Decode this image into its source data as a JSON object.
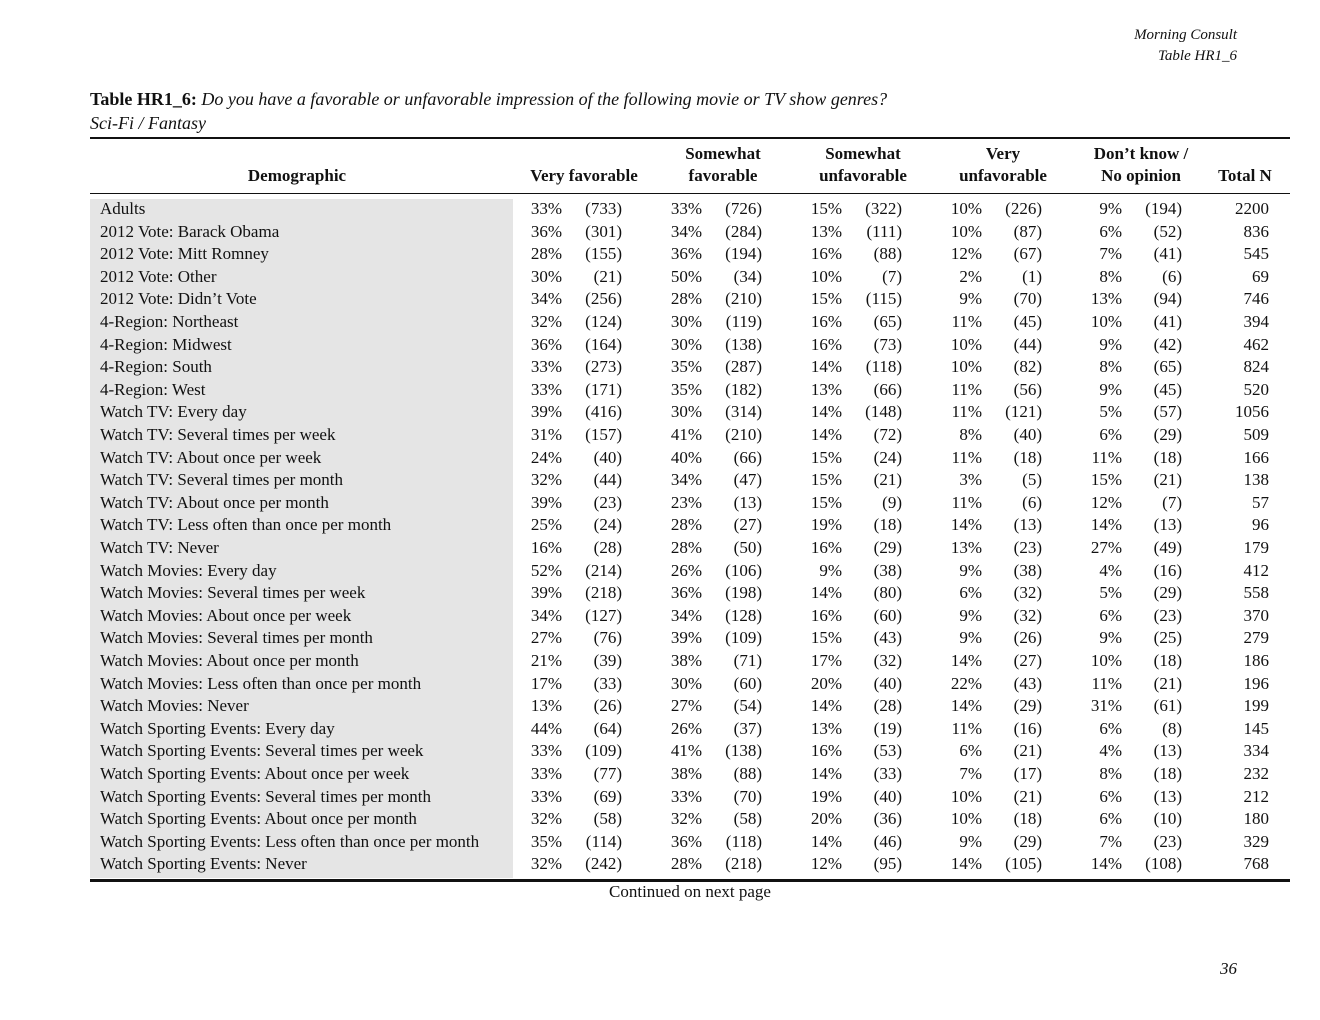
{
  "header": {
    "source": "Morning Consult",
    "table_id": "Table HR1_6"
  },
  "title": {
    "label": "Table HR1_6:",
    "question": "Do you have a favorable or unfavorable impression of the following movie or TV show genres?",
    "subtitle": "Sci-Fi / Fantasy"
  },
  "table": {
    "columns": [
      [
        "Demographic"
      ],
      [
        "Very favorable"
      ],
      [
        "Somewhat",
        "favorable"
      ],
      [
        "Somewhat",
        "unfavorable"
      ],
      [
        "Very",
        "unfavorable"
      ],
      [
        "Don’t know /",
        "No opinion"
      ],
      [
        "Total N"
      ]
    ],
    "rows": [
      {
        "label": "Adults",
        "cells": [
          "33%",
          "(733)",
          "33%",
          "(726)",
          "15%",
          "(322)",
          "10%",
          "(226)",
          "9%",
          "(194)",
          "2200"
        ]
      },
      {
        "label": "2012 Vote: Barack Obama",
        "cells": [
          "36%",
          "(301)",
          "34%",
          "(284)",
          "13%",
          "(111)",
          "10%",
          "(87)",
          "6%",
          "(52)",
          "836"
        ]
      },
      {
        "label": "2012 Vote: Mitt Romney",
        "cells": [
          "28%",
          "(155)",
          "36%",
          "(194)",
          "16%",
          "(88)",
          "12%",
          "(67)",
          "7%",
          "(41)",
          "545"
        ]
      },
      {
        "label": "2012 Vote: Other",
        "cells": [
          "30%",
          "(21)",
          "50%",
          "(34)",
          "10%",
          "(7)",
          "2%",
          "(1)",
          "8%",
          "(6)",
          "69"
        ]
      },
      {
        "label": "2012 Vote: Didn’t Vote",
        "cells": [
          "34%",
          "(256)",
          "28%",
          "(210)",
          "15%",
          "(115)",
          "9%",
          "(70)",
          "13%",
          "(94)",
          "746"
        ]
      },
      {
        "label": "4-Region: Northeast",
        "cells": [
          "32%",
          "(124)",
          "30%",
          "(119)",
          "16%",
          "(65)",
          "11%",
          "(45)",
          "10%",
          "(41)",
          "394"
        ]
      },
      {
        "label": "4-Region: Midwest",
        "cells": [
          "36%",
          "(164)",
          "30%",
          "(138)",
          "16%",
          "(73)",
          "10%",
          "(44)",
          "9%",
          "(42)",
          "462"
        ]
      },
      {
        "label": "4-Region: South",
        "cells": [
          "33%",
          "(273)",
          "35%",
          "(287)",
          "14%",
          "(118)",
          "10%",
          "(82)",
          "8%",
          "(65)",
          "824"
        ]
      },
      {
        "label": "4-Region: West",
        "cells": [
          "33%",
          "(171)",
          "35%",
          "(182)",
          "13%",
          "(66)",
          "11%",
          "(56)",
          "9%",
          "(45)",
          "520"
        ]
      },
      {
        "label": "Watch TV: Every day",
        "cells": [
          "39%",
          "(416)",
          "30%",
          "(314)",
          "14%",
          "(148)",
          "11%",
          "(121)",
          "5%",
          "(57)",
          "1056"
        ]
      },
      {
        "label": "Watch TV: Several times per week",
        "cells": [
          "31%",
          "(157)",
          "41%",
          "(210)",
          "14%",
          "(72)",
          "8%",
          "(40)",
          "6%",
          "(29)",
          "509"
        ]
      },
      {
        "label": "Watch TV: About once per week",
        "cells": [
          "24%",
          "(40)",
          "40%",
          "(66)",
          "15%",
          "(24)",
          "11%",
          "(18)",
          "11%",
          "(18)",
          "166"
        ]
      },
      {
        "label": "Watch TV: Several times per month",
        "cells": [
          "32%",
          "(44)",
          "34%",
          "(47)",
          "15%",
          "(21)",
          "3%",
          "(5)",
          "15%",
          "(21)",
          "138"
        ]
      },
      {
        "label": "Watch TV: About once per month",
        "cells": [
          "39%",
          "(23)",
          "23%",
          "(13)",
          "15%",
          "(9)",
          "11%",
          "(6)",
          "12%",
          "(7)",
          "57"
        ]
      },
      {
        "label": "Watch TV: Less often than once per month",
        "cells": [
          "25%",
          "(24)",
          "28%",
          "(27)",
          "19%",
          "(18)",
          "14%",
          "(13)",
          "14%",
          "(13)",
          "96"
        ]
      },
      {
        "label": "Watch TV: Never",
        "cells": [
          "16%",
          "(28)",
          "28%",
          "(50)",
          "16%",
          "(29)",
          "13%",
          "(23)",
          "27%",
          "(49)",
          "179"
        ]
      },
      {
        "label": "Watch Movies: Every day",
        "cells": [
          "52%",
          "(214)",
          "26%",
          "(106)",
          "9%",
          "(38)",
          "9%",
          "(38)",
          "4%",
          "(16)",
          "412"
        ]
      },
      {
        "label": "Watch Movies: Several times per week",
        "cells": [
          "39%",
          "(218)",
          "36%",
          "(198)",
          "14%",
          "(80)",
          "6%",
          "(32)",
          "5%",
          "(29)",
          "558"
        ]
      },
      {
        "label": "Watch Movies: About once per week",
        "cells": [
          "34%",
          "(127)",
          "34%",
          "(128)",
          "16%",
          "(60)",
          "9%",
          "(32)",
          "6%",
          "(23)",
          "370"
        ]
      },
      {
        "label": "Watch Movies: Several times per month",
        "cells": [
          "27%",
          "(76)",
          "39%",
          "(109)",
          "15%",
          "(43)",
          "9%",
          "(26)",
          "9%",
          "(25)",
          "279"
        ]
      },
      {
        "label": "Watch Movies: About once per month",
        "cells": [
          "21%",
          "(39)",
          "38%",
          "(71)",
          "17%",
          "(32)",
          "14%",
          "(27)",
          "10%",
          "(18)",
          "186"
        ]
      },
      {
        "label": "Watch Movies: Less often than once per month",
        "cells": [
          "17%",
          "(33)",
          "30%",
          "(60)",
          "20%",
          "(40)",
          "22%",
          "(43)",
          "11%",
          "(21)",
          "196"
        ]
      },
      {
        "label": "Watch Movies: Never",
        "cells": [
          "13%",
          "(26)",
          "27%",
          "(54)",
          "14%",
          "(28)",
          "14%",
          "(29)",
          "31%",
          "(61)",
          "199"
        ]
      },
      {
        "label": "Watch Sporting Events: Every day",
        "cells": [
          "44%",
          "(64)",
          "26%",
          "(37)",
          "13%",
          "(19)",
          "11%",
          "(16)",
          "6%",
          "(8)",
          "145"
        ]
      },
      {
        "label": "Watch Sporting Events: Several times per week",
        "cells": [
          "33%",
          "(109)",
          "41%",
          "(138)",
          "16%",
          "(53)",
          "6%",
          "(21)",
          "4%",
          "(13)",
          "334"
        ]
      },
      {
        "label": "Watch Sporting Events: About once per week",
        "cells": [
          "33%",
          "(77)",
          "38%",
          "(88)",
          "14%",
          "(33)",
          "7%",
          "(17)",
          "8%",
          "(18)",
          "232"
        ]
      },
      {
        "label": "Watch Sporting Events: Several times per month",
        "cells": [
          "33%",
          "(69)",
          "33%",
          "(70)",
          "19%",
          "(40)",
          "10%",
          "(21)",
          "6%",
          "(13)",
          "212"
        ]
      },
      {
        "label": "Watch Sporting Events: About once per month",
        "cells": [
          "32%",
          "(58)",
          "32%",
          "(58)",
          "20%",
          "(36)",
          "10%",
          "(18)",
          "6%",
          "(10)",
          "180"
        ]
      },
      {
        "label": "Watch Sporting Events: Less often than once per month",
        "cells": [
          "35%",
          "(114)",
          "36%",
          "(118)",
          "14%",
          "(46)",
          "9%",
          "(29)",
          "7%",
          "(23)",
          "329"
        ]
      },
      {
        "label": "Watch Sporting Events: Never",
        "cells": [
          "32%",
          "(242)",
          "28%",
          "(218)",
          "12%",
          "(95)",
          "14%",
          "(105)",
          "14%",
          "(108)",
          "768"
        ]
      }
    ]
  },
  "footer": {
    "continued": "Continued on next page",
    "page_number": "36"
  }
}
